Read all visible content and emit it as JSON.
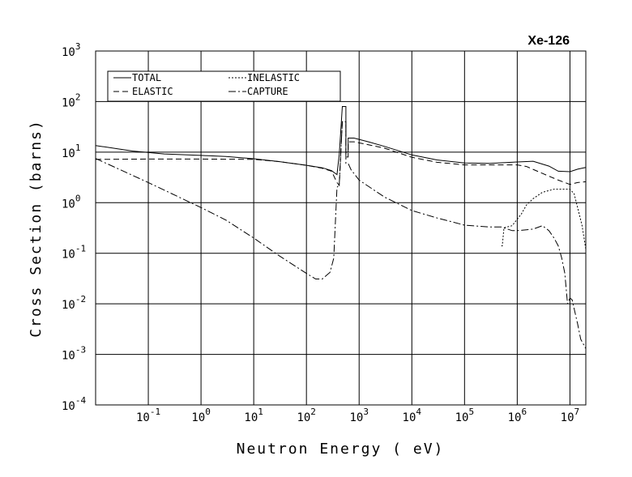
{
  "chart_data": {
    "type": "line",
    "title": "Xe-126",
    "xlabel": "Neutron Energy ( eV)",
    "ylabel": "Cross Section (barns)",
    "x_scale": "log",
    "y_scale": "log",
    "xlim": [
      0.01,
      20000000
    ],
    "ylim": [
      0.0001,
      1000
    ],
    "grid": true,
    "legend_position": "top-left",
    "x_tick_labels": [
      {
        "base": "10",
        "exp": "-1",
        "value": 0.1
      },
      {
        "base": "10",
        "exp": "0",
        "value": 1
      },
      {
        "base": "10",
        "exp": "1",
        "value": 10
      },
      {
        "base": "10",
        "exp": "2",
        "value": 100
      },
      {
        "base": "10",
        "exp": "3",
        "value": 1000
      },
      {
        "base": "10",
        "exp": "4",
        "value": 10000
      },
      {
        "base": "10",
        "exp": "5",
        "value": 100000
      },
      {
        "base": "10",
        "exp": "6",
        "value": 1000000
      },
      {
        "base": "10",
        "exp": "7",
        "value": 10000000
      }
    ],
    "y_tick_labels": [
      {
        "base": "10",
        "exp": "3",
        "value": 1000
      },
      {
        "base": "10",
        "exp": "2",
        "value": 100
      },
      {
        "base": "10",
        "exp": "1",
        "value": 10
      },
      {
        "base": "10",
        "exp": "0",
        "value": 1
      },
      {
        "base": "10",
        "exp": "-1",
        "value": 0.1
      },
      {
        "base": "10",
        "exp": "-2",
        "value": 0.01
      },
      {
        "base": "10",
        "exp": "-3",
        "value": 0.001
      },
      {
        "base": "10",
        "exp": "-4",
        "value": 0.0001
      }
    ],
    "series": [
      {
        "name": "TOTAL",
        "dash": "solid",
        "points": [
          [
            0.01,
            13.5
          ],
          [
            0.05,
            10.5
          ],
          [
            0.2,
            9.2
          ],
          [
            1,
            8.6
          ],
          [
            3,
            8.2
          ],
          [
            10,
            7.4
          ],
          [
            30,
            6.5
          ],
          [
            100,
            5.5
          ],
          [
            200,
            4.9
          ],
          [
            300,
            4.3
          ],
          [
            380,
            3.6
          ],
          [
            420,
            9.0
          ],
          [
            480,
            80
          ],
          [
            560,
            80
          ],
          [
            560,
            10
          ],
          [
            620,
            10
          ],
          [
            620,
            19
          ],
          [
            800,
            19
          ],
          [
            1500,
            16
          ],
          [
            3000,
            13
          ],
          [
            10000,
            8.8
          ],
          [
            30000,
            7.0
          ],
          [
            100000,
            6.1
          ],
          [
            300000,
            6.0
          ],
          [
            1000000,
            6.4
          ],
          [
            2000000,
            6.6
          ],
          [
            4000000,
            5.3
          ],
          [
            6000000,
            4.2
          ],
          [
            10000000,
            4.1
          ],
          [
            14000000,
            4.6
          ],
          [
            20000000,
            5.0
          ]
        ]
      },
      {
        "name": "ELASTIC",
        "dash": "dashed",
        "points": [
          [
            0.01,
            7.2
          ],
          [
            0.1,
            7.3
          ],
          [
            1,
            7.3
          ],
          [
            10,
            7.2
          ],
          [
            30,
            6.5
          ],
          [
            100,
            5.5
          ],
          [
            200,
            4.8
          ],
          [
            300,
            4.2
          ],
          [
            380,
            2.5
          ],
          [
            420,
            2.2
          ],
          [
            480,
            40
          ],
          [
            560,
            40
          ],
          [
            560,
            8
          ],
          [
            620,
            8
          ],
          [
            620,
            16
          ],
          [
            800,
            16
          ],
          [
            1500,
            14
          ],
          [
            3000,
            12
          ],
          [
            10000,
            7.9
          ],
          [
            30000,
            6.3
          ],
          [
            100000,
            5.6
          ],
          [
            300000,
            5.6
          ],
          [
            1000000,
            5.6
          ],
          [
            1500000,
            5.2
          ],
          [
            3000000,
            3.8
          ],
          [
            6000000,
            2.8
          ],
          [
            10000000,
            2.3
          ],
          [
            14000000,
            2.5
          ],
          [
            20000000,
            2.6
          ]
        ]
      },
      {
        "name": "INELASTIC",
        "dash": "dotted",
        "points": [
          [
            500000,
            0.14
          ],
          [
            520000,
            0.14
          ],
          [
            560000,
            0.32
          ],
          [
            800000,
            0.35
          ],
          [
            1200000,
            0.6
          ],
          [
            1500000,
            0.9
          ],
          [
            2000000,
            1.2
          ],
          [
            3000000,
            1.6
          ],
          [
            5000000,
            1.85
          ],
          [
            10000000,
            1.85
          ],
          [
            12000000,
            1.5
          ],
          [
            14000000,
            0.8
          ],
          [
            17000000,
            0.35
          ],
          [
            20000000,
            0.12
          ]
        ]
      },
      {
        "name": "CAPTURE",
        "dash": "dashdot",
        "points": [
          [
            0.01,
            7.5
          ],
          [
            0.1,
            2.5
          ],
          [
            1,
            0.8
          ],
          [
            3,
            0.45
          ],
          [
            10,
            0.2
          ],
          [
            30,
            0.09
          ],
          [
            100,
            0.04
          ],
          [
            150,
            0.031
          ],
          [
            200,
            0.031
          ],
          [
            280,
            0.042
          ],
          [
            330,
            0.08
          ],
          [
            380,
            2.0
          ],
          [
            420,
            2.3
          ],
          [
            480,
            40
          ],
          [
            560,
            40
          ],
          [
            560,
            6
          ],
          [
            620,
            6
          ],
          [
            700,
            4.5
          ],
          [
            1000,
            2.8
          ],
          [
            3000,
            1.3
          ],
          [
            10000,
            0.7
          ],
          [
            30000,
            0.5
          ],
          [
            100000,
            0.36
          ],
          [
            300000,
            0.33
          ],
          [
            500000,
            0.33
          ],
          [
            800000,
            0.28
          ],
          [
            1000000,
            0.28
          ],
          [
            2000000,
            0.3
          ],
          [
            3000000,
            0.35
          ],
          [
            4000000,
            0.28
          ],
          [
            5000000,
            0.2
          ],
          [
            6000000,
            0.14
          ],
          [
            7000000,
            0.08
          ],
          [
            8000000,
            0.04
          ],
          [
            9000000,
            0.01
          ],
          [
            10000000,
            0.013
          ],
          [
            11000000,
            0.012
          ],
          [
            12000000,
            0.008
          ],
          [
            14000000,
            0.004
          ],
          [
            16000000,
            0.002
          ],
          [
            20000000,
            0.0013
          ]
        ]
      }
    ]
  }
}
